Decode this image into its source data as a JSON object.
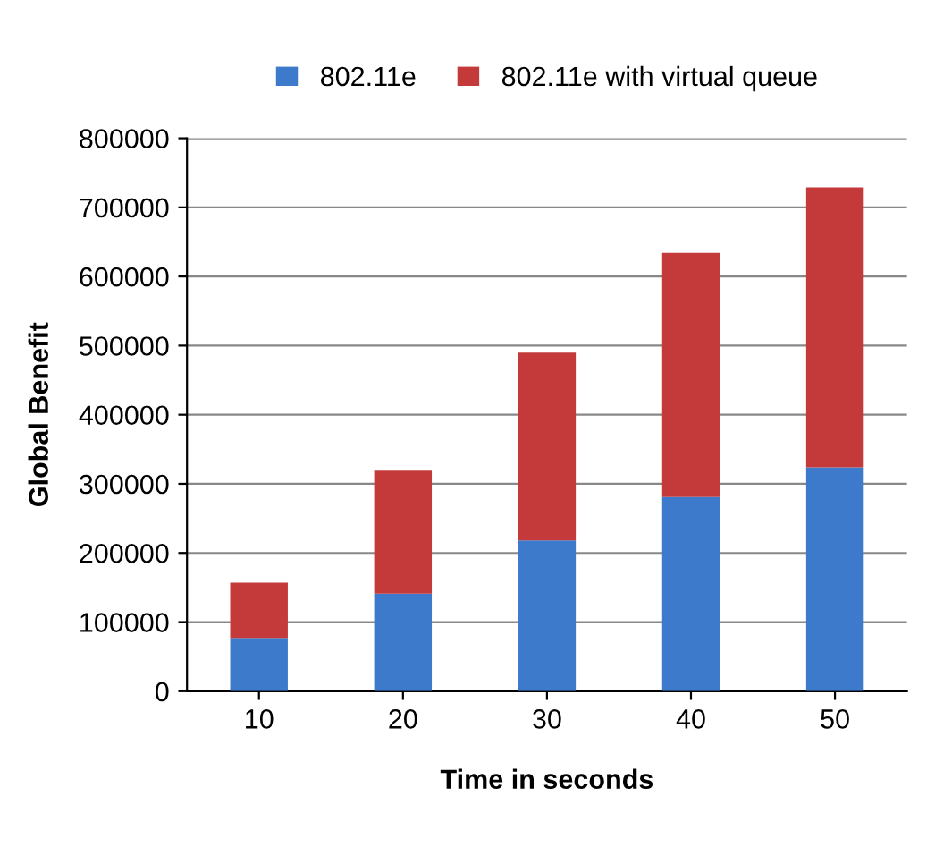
{
  "chart_data": {
    "type": "bar",
    "stacked": true,
    "xlabel": "Time in seconds",
    "ylabel": "Global Benefit",
    "categories": [
      "10",
      "20",
      "30",
      "40",
      "50"
    ],
    "series": [
      {
        "name": "802.11e",
        "color": "#3d7acb",
        "values": [
          77000,
          141000,
          218000,
          281000,
          324000
        ]
      },
      {
        "name": "802.11e with virtual queue",
        "color": "#c43a3a",
        "values": [
          80000,
          178000,
          272000,
          353000,
          405000
        ]
      }
    ],
    "ylim": [
      0,
      800000
    ],
    "yticks": [
      0,
      100000,
      200000,
      300000,
      400000,
      500000,
      600000,
      700000,
      800000
    ],
    "grid": "y",
    "legend": "top"
  }
}
